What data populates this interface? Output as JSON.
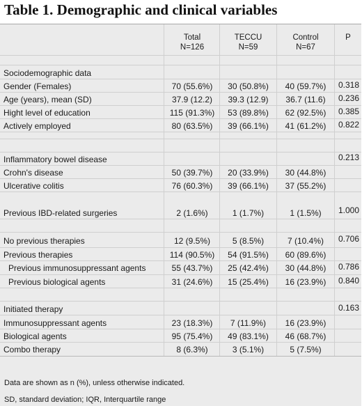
{
  "title": "Table 1. Demographic and clinical variables",
  "headers": {
    "total_line1": "Total",
    "total_line2": "N=126",
    "teccu_line1": "TECCU",
    "teccu_line2": "N=59",
    "control_line1": "Control",
    "control_line2": "N=67",
    "p": "P"
  },
  "rows": [
    {
      "label": "Sociodemographic data",
      "total": "",
      "teccu": "",
      "control": "",
      "p": ""
    },
    {
      "label": "Gender (Females)",
      "total": "70 (55.6%)",
      "teccu": "30 (50.8%)",
      "control": "40 (59.7%)",
      "p": "0.318"
    },
    {
      "label": "Age (years), mean (SD)",
      "total": "37.9 (12.2)",
      "teccu": "39.3 (12.9)",
      "control": "36.7 (11.6)",
      "p": "0.236"
    },
    {
      "label": "Hight level of education",
      "total": "115 (91.3%)",
      "teccu": "53 (89.8%)",
      "control": "62 (92.5%)",
      "p": "0.385"
    },
    {
      "label": "Actively employed",
      "total": "80 (63.5%)",
      "teccu": "39 (66.1%)",
      "control": "41 (61.2%)",
      "p": "0.822"
    },
    {
      "label": "Inflammatory bowel disease",
      "total": "",
      "teccu": "",
      "control": "",
      "p": "0.213"
    },
    {
      "label": "Crohn's disease",
      "total": "50 (39.7%)",
      "teccu": "20 (33.9%)",
      "control": "30 (44.8%)",
      "p": ""
    },
    {
      "label": "Ulcerative colitis",
      "total": "76 (60.3%)",
      "teccu": "39 (66.1%)",
      "control": "37 (55.2%)",
      "p": ""
    },
    {
      "label": "Previous IBD-related surgeries",
      "total": "2 (1.6%)",
      "teccu": "1 (1.7%)",
      "control": "1 (1.5%)",
      "p": "1.000"
    },
    {
      "label": "No previous therapies",
      "total": "12 (9.5%)",
      "teccu": "5 (8.5%)",
      "control": "7 (10.4%)",
      "p": "0.706"
    },
    {
      "label": "Previous therapies",
      "total": "114 (90.5%)",
      "teccu": "54 (91.5%)",
      "control": "60 (89.6%)",
      "p": ""
    },
    {
      "label": "Previous immunosuppressant agents",
      "total": "55 (43.7%)",
      "teccu": "25 (42.4%)",
      "control": "30 (44.8%)",
      "p": "0.786"
    },
    {
      "label": "Previous biological agents",
      "total": "31 (24.6%)",
      "teccu": "15 (25.4%)",
      "control": "16 (23.9%)",
      "p": "0.840"
    },
    {
      "label": "Initiated therapy",
      "total": "",
      "teccu": "",
      "control": "",
      "p": "0.163"
    },
    {
      "label": "Immunosuppressant agents",
      "total": "23 (18.3%)",
      "teccu": "7 (11.9%)",
      "control": "16 (23.9%)",
      "p": ""
    },
    {
      "label": "Biological agents",
      "total": "95 (75.4%)",
      "teccu": "49 (83.1%)",
      "control": "46 (68.7%)",
      "p": ""
    },
    {
      "label": "Combo therapy",
      "total": "8 (6.3%)",
      "teccu": "3 (5.1%)",
      "control": "5 (7.5%)",
      "p": ""
    }
  ],
  "footnotes": [
    "Data are shown as n (%), unless otherwise indicated.",
    "SD, standard deviation; IQR, Interquartile range"
  ]
}
